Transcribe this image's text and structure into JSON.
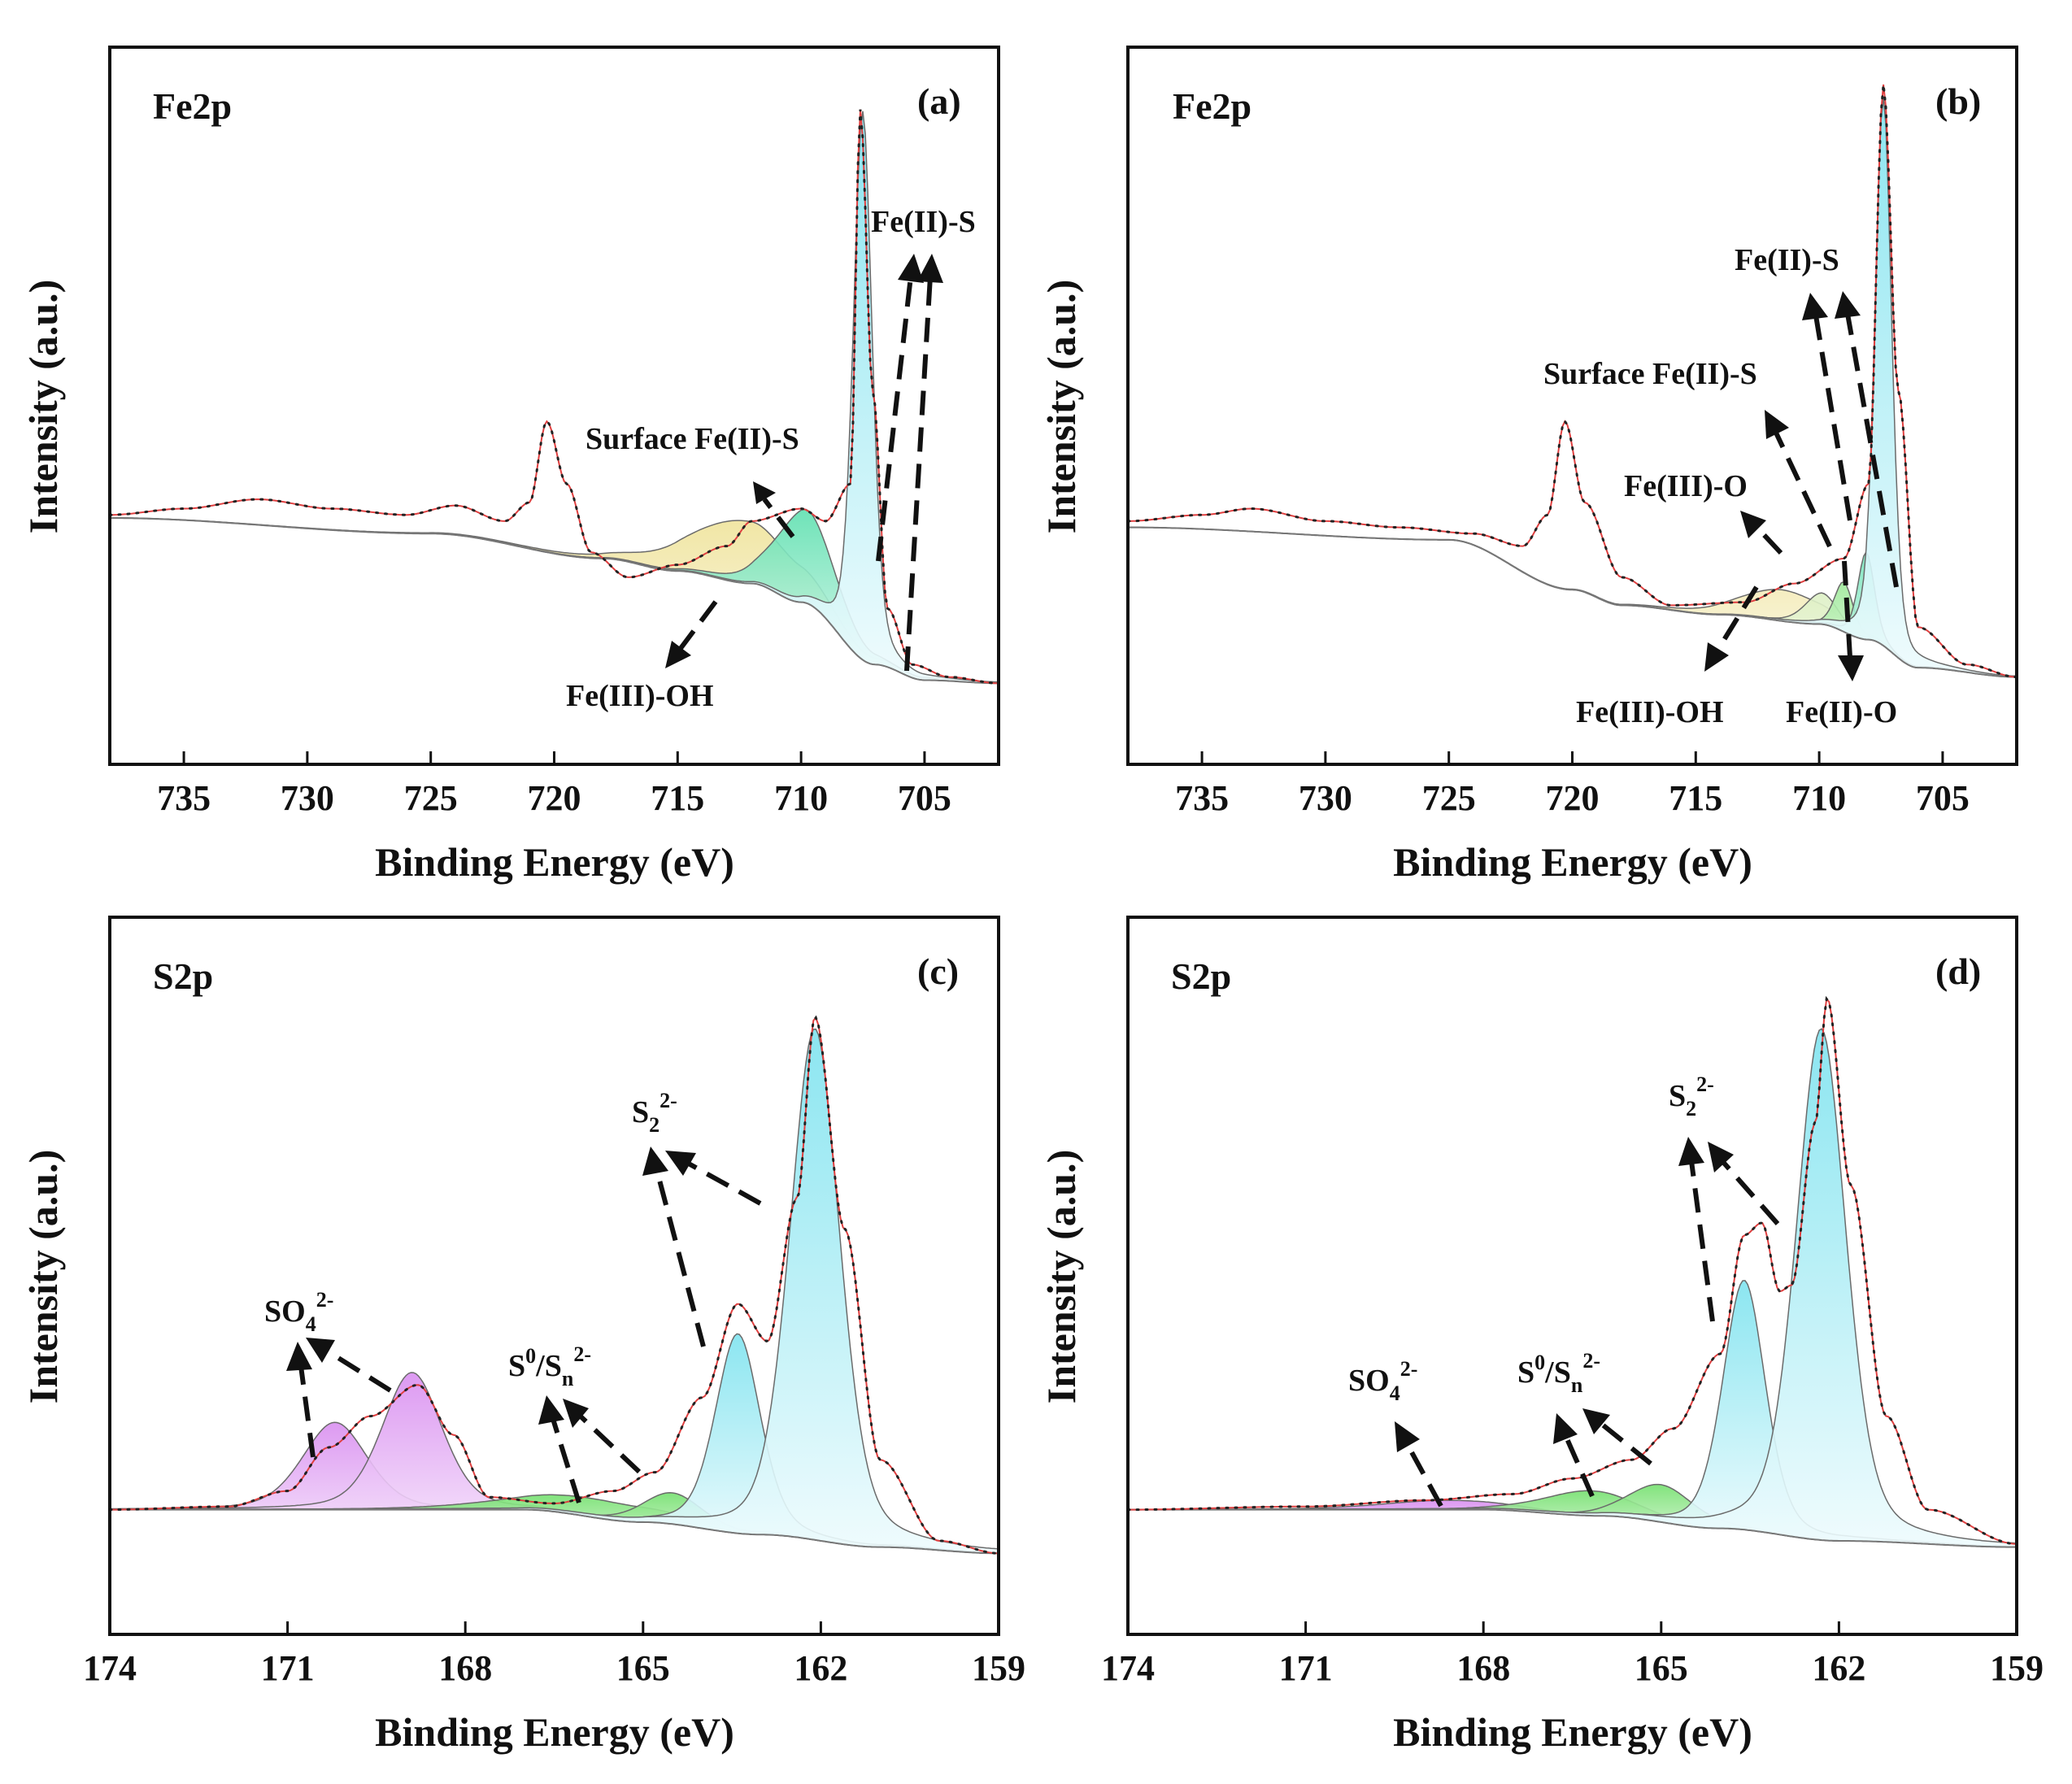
{
  "figure": {
    "panels": [
      {
        "id": "a",
        "element": "Fe2p",
        "letter": "(a)",
        "ylabel": "Intensity (a.u.)",
        "xlabel": "Binding Energy (eV)",
        "annotations": [
          {
            "label": "Surface Fe(II)-S",
            "sup": "",
            "sub": ""
          },
          {
            "label": "Fe(II)-S",
            "sup": "",
            "sub": ""
          },
          {
            "label": "Fe(III)-OH",
            "sup": "",
            "sub": ""
          }
        ]
      },
      {
        "id": "b",
        "element": "Fe2p",
        "letter": "(b)",
        "ylabel": "Intensity (a.u.)",
        "xlabel": "Binding Energy (eV)",
        "annotations": [
          {
            "label": "Fe(II)-S",
            "sup": "",
            "sub": ""
          },
          {
            "label": "Surface Fe(II)-S",
            "sup": "",
            "sub": ""
          },
          {
            "label": "Fe(III)-O",
            "sup": "",
            "sub": ""
          },
          {
            "label": "Fe(III)-OH",
            "sup": "",
            "sub": ""
          },
          {
            "label": "Fe(II)-O",
            "sup": "",
            "sub": ""
          }
        ]
      },
      {
        "id": "c",
        "element": "S2p",
        "letter": "(c)",
        "ylabel": "Intensity (a.u.)",
        "xlabel": "Binding Energy (eV)",
        "annotations": [
          {
            "label": "SO",
            "sub": "4",
            "sup": "2-"
          },
          {
            "label": "S",
            "sup": "0",
            "mid": "/S",
            "sub": "n",
            "sup2": "2-"
          },
          {
            "label": "S",
            "sub": "2",
            "sup": "2-"
          }
        ]
      },
      {
        "id": "d",
        "element": "S2p",
        "letter": "(d)",
        "ylabel": "Intensity (a.u.)",
        "xlabel": "Binding Energy (eV)",
        "annotations": [
          {
            "label": "SO",
            "sub": "4",
            "sup": "2-"
          },
          {
            "label": "S",
            "sup": "0",
            "mid": "/S",
            "sub": "n",
            "sup2": "2-"
          },
          {
            "label": "S",
            "sub": "2",
            "sup": "2-"
          }
        ]
      }
    ]
  },
  "chart_data": [
    {
      "type": "line",
      "panel": "a",
      "title": "Fe2p",
      "xlabel": "Binding Energy (eV)",
      "ylabel": "Intensity (a.u.)",
      "x_reversed": true,
      "xlim": [
        738,
        702
      ],
      "ylim": [
        0,
        1.15
      ],
      "xticks": [
        735,
        730,
        725,
        720,
        715,
        710,
        705
      ],
      "grid": false,
      "background": [
        [
          738,
          0.395
        ],
        [
          725,
          0.37
        ],
        [
          718,
          0.33
        ],
        [
          715,
          0.31
        ],
        [
          712,
          0.29
        ],
        [
          710,
          0.26
        ],
        [
          707,
          0.16
        ],
        [
          705,
          0.135
        ],
        [
          702,
          0.13
        ]
      ],
      "raw": [
        [
          738,
          0.4
        ],
        [
          735,
          0.41
        ],
        [
          732,
          0.425
        ],
        [
          729,
          0.41
        ],
        [
          726,
          0.4
        ],
        [
          724,
          0.415
        ],
        [
          722,
          0.39
        ],
        [
          721,
          0.42
        ],
        [
          720.3,
          0.55
        ],
        [
          719.5,
          0.45
        ],
        [
          718.5,
          0.34
        ],
        [
          717,
          0.3
        ],
        [
          715,
          0.32
        ],
        [
          713,
          0.35
        ],
        [
          712,
          0.39
        ],
        [
          710,
          0.41
        ],
        [
          709,
          0.39
        ],
        [
          708,
          0.45
        ],
        [
          707.6,
          1.05
        ],
        [
          707.1,
          0.6
        ],
        [
          706.5,
          0.25
        ],
        [
          705.5,
          0.16
        ],
        [
          704,
          0.14
        ],
        [
          702,
          0.13
        ]
      ],
      "series": [
        {
          "name": "Fe(III)-OH",
          "center": 712.3,
          "fwhm": 5.2,
          "height": 0.1,
          "color": "#efe6a0"
        },
        {
          "name": "Surface Fe(II)-S",
          "center": 709.8,
          "fwhm": 2.8,
          "height": 0.15,
          "color": "#7fe6c0"
        },
        {
          "name": "Fe(II)-S",
          "center": 707.5,
          "fwhm": 0.9,
          "height": 0.88,
          "color": "#a8eef4"
        }
      ]
    },
    {
      "type": "line",
      "panel": "b",
      "title": "Fe2p",
      "xlabel": "Binding Energy (eV)",
      "ylabel": "Intensity (a.u.)",
      "x_reversed": true,
      "xlim": [
        738,
        702
      ],
      "ylim": [
        0,
        1.15
      ],
      "xticks": [
        735,
        730,
        725,
        720,
        715,
        710,
        705
      ],
      "grid": false,
      "background": [
        [
          738,
          0.38
        ],
        [
          725,
          0.36
        ],
        [
          720,
          0.28
        ],
        [
          718,
          0.255
        ],
        [
          714,
          0.24
        ],
        [
          710,
          0.225
        ],
        [
          708,
          0.2
        ],
        [
          706,
          0.155
        ],
        [
          702,
          0.14
        ]
      ],
      "raw": [
        [
          738,
          0.39
        ],
        [
          735,
          0.4
        ],
        [
          733,
          0.41
        ],
        [
          730,
          0.39
        ],
        [
          727,
          0.38
        ],
        [
          724,
          0.37
        ],
        [
          722,
          0.35
        ],
        [
          721,
          0.4
        ],
        [
          720.3,
          0.55
        ],
        [
          719.5,
          0.42
        ],
        [
          718,
          0.3
        ],
        [
          716,
          0.255
        ],
        [
          713,
          0.26
        ],
        [
          711,
          0.29
        ],
        [
          709,
          0.33
        ],
        [
          708,
          0.45
        ],
        [
          707.4,
          1.09
        ],
        [
          706.8,
          0.6
        ],
        [
          706,
          0.22
        ],
        [
          704,
          0.16
        ],
        [
          702,
          0.14
        ]
      ],
      "series": [
        {
          "name": "Fe(III)-OH",
          "center": 711.5,
          "fwhm": 4.0,
          "height": 0.05,
          "color": "#efe6a0"
        },
        {
          "name": "Fe(III)-O",
          "center": 709.9,
          "fwhm": 1.6,
          "height": 0.05,
          "color": "#d6eeb8"
        },
        {
          "name": "Surface Fe(II)-S",
          "center": 709.0,
          "fwhm": 0.9,
          "height": 0.08,
          "color": "#8ee890"
        },
        {
          "name": "Fe(II)-O",
          "center": 708.1,
          "fwhm": 0.8,
          "height": 0.14,
          "color": "#7fe6c0"
        },
        {
          "name": "Fe(II)-S",
          "center": 707.4,
          "fwhm": 0.8,
          "height": 0.88,
          "color": "#a8eef4"
        }
      ]
    },
    {
      "type": "line",
      "panel": "c",
      "title": "S2p",
      "xlabel": "Binding Energy (eV)",
      "ylabel": "Intensity (a.u.)",
      "x_reversed": true,
      "xlim": [
        174,
        159
      ],
      "ylim": [
        0,
        1.15
      ],
      "xticks": [
        174,
        171,
        168,
        165,
        162,
        159
      ],
      "grid": false,
      "background": [
        [
          174,
          0.2
        ],
        [
          167,
          0.2
        ],
        [
          165,
          0.18
        ],
        [
          163,
          0.16
        ],
        [
          161,
          0.14
        ],
        [
          159,
          0.13
        ]
      ],
      "raw": [
        [
          174,
          0.2
        ],
        [
          172,
          0.205
        ],
        [
          171,
          0.23
        ],
        [
          170.3,
          0.3
        ],
        [
          169.6,
          0.35
        ],
        [
          168.8,
          0.4
        ],
        [
          168.2,
          0.32
        ],
        [
          167.6,
          0.22
        ],
        [
          166.5,
          0.21
        ],
        [
          165.5,
          0.23
        ],
        [
          164.8,
          0.26
        ],
        [
          164.0,
          0.38
        ],
        [
          163.4,
          0.53
        ],
        [
          162.9,
          0.47
        ],
        [
          162.4,
          0.7
        ],
        [
          162.1,
          0.99
        ],
        [
          161.6,
          0.65
        ],
        [
          161.0,
          0.28
        ],
        [
          160.0,
          0.15
        ],
        [
          159,
          0.13
        ]
      ],
      "series": [
        {
          "name": "SO4 2- (1)",
          "center": 170.2,
          "fwhm": 1.3,
          "height": 0.14,
          "color": "#e6a8f4"
        },
        {
          "name": "SO4 2- (2)",
          "center": 168.9,
          "fwhm": 1.2,
          "height": 0.22,
          "color": "#e6a8f4"
        },
        {
          "name": "S0/Sn 2- (1)",
          "center": 165.9,
          "fwhm": 3.2,
          "height": 0.03,
          "color": "#a8f0a0"
        },
        {
          "name": "S0/Sn 2- (2)",
          "center": 164.5,
          "fwhm": 1.2,
          "height": 0.05,
          "color": "#a8f0a0"
        },
        {
          "name": "S2 2- (1)",
          "center": 163.4,
          "fwhm": 0.9,
          "height": 0.32,
          "color": "#a8eef4"
        },
        {
          "name": "S2 2- (2)",
          "center": 162.1,
          "fwhm": 1.0,
          "height": 0.82,
          "color": "#a8eef4"
        }
      ]
    },
    {
      "type": "line",
      "panel": "d",
      "title": "S2p",
      "xlabel": "Binding Energy (eV)",
      "ylabel": "Intensity (a.u.)",
      "x_reversed": true,
      "xlim": [
        174,
        159
      ],
      "ylim": [
        0,
        1.15
      ],
      "xticks": [
        174,
        171,
        168,
        165,
        162,
        159
      ],
      "grid": false,
      "background": [
        [
          174,
          0.2
        ],
        [
          168,
          0.2
        ],
        [
          166,
          0.19
        ],
        [
          164,
          0.17
        ],
        [
          162,
          0.15
        ],
        [
          159,
          0.14
        ]
      ],
      "raw": [
        [
          174,
          0.2
        ],
        [
          171,
          0.205
        ],
        [
          169,
          0.215
        ],
        [
          167.5,
          0.225
        ],
        [
          166.5,
          0.25
        ],
        [
          165.5,
          0.28
        ],
        [
          164.8,
          0.33
        ],
        [
          164.0,
          0.45
        ],
        [
          163.6,
          0.64
        ],
        [
          163.3,
          0.66
        ],
        [
          163.0,
          0.55
        ],
        [
          162.8,
          0.56
        ],
        [
          162.4,
          0.82
        ],
        [
          162.2,
          1.02
        ],
        [
          161.8,
          0.72
        ],
        [
          161.2,
          0.35
        ],
        [
          160.5,
          0.2
        ],
        [
          159,
          0.145
        ]
      ],
      "series": [
        {
          "name": "SO4 2-",
          "center": 168.6,
          "fwhm": 2.6,
          "height": 0.015,
          "color": "#e6a8f4"
        },
        {
          "name": "S0/Sn 2- (1)",
          "center": 166.2,
          "fwhm": 1.8,
          "height": 0.04,
          "color": "#a8f0a0"
        },
        {
          "name": "S0/Sn 2- (2)",
          "center": 165.0,
          "fwhm": 1.3,
          "height": 0.06,
          "color": "#a8f0a0"
        },
        {
          "name": "S2 2- (1)",
          "center": 163.6,
          "fwhm": 0.85,
          "height": 0.4,
          "color": "#a8eef4"
        },
        {
          "name": "S2 2- (2)",
          "center": 162.3,
          "fwhm": 1.0,
          "height": 0.82,
          "color": "#a8eef4"
        }
      ]
    }
  ]
}
